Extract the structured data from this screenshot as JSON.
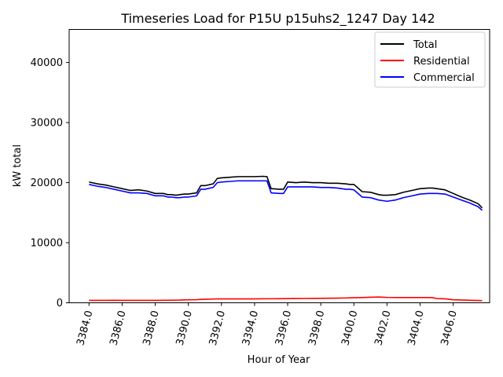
{
  "chart_data": {
    "type": "line",
    "title": "Timeseries Load for P15U p15uhs2_1247  Day 142",
    "xlabel": "Hour of Year",
    "ylabel": "kW total",
    "xlim": [
      3382.8,
      3408.2
    ],
    "ylim": [
      0,
      45500
    ],
    "x_ticks": [
      3384.0,
      3386.0,
      3388.0,
      3390.0,
      3392.0,
      3394.0,
      3396.0,
      3398.0,
      3400.0,
      3402.0,
      3404.0,
      3406.0
    ],
    "x_tick_labels": [
      "3384.0",
      "3386.0",
      "3388.0",
      "3390.0",
      "3392.0",
      "3394.0",
      "3396.0",
      "3398.0",
      "3400.0",
      "3402.0",
      "3404.0",
      "3406.0"
    ],
    "y_ticks": [
      0,
      10000,
      20000,
      30000,
      40000
    ],
    "y_tick_labels": [
      "0",
      "10000",
      "20000",
      "30000",
      "40000"
    ],
    "legend_position": "top-right",
    "x": [
      3384.0,
      3384.5,
      3385.0,
      3385.5,
      3386.0,
      3386.5,
      3387.0,
      3387.5,
      3388.0,
      3388.25,
      3388.5,
      3388.75,
      3389.0,
      3389.25,
      3389.5,
      3389.75,
      3390.0,
      3390.5,
      3390.75,
      3391.0,
      3391.5,
      3391.75,
      3392.0,
      3392.5,
      3393.0,
      3393.5,
      3394.0,
      3394.5,
      3394.75,
      3395.0,
      3395.5,
      3395.75,
      3396.0,
      3396.5,
      3397.0,
      3397.5,
      3398.0,
      3398.5,
      3399.0,
      3399.5,
      3399.75,
      3400.0,
      3400.5,
      3401.0,
      3401.25,
      3401.5,
      3401.75,
      3402.0,
      3402.5,
      3403.0,
      3403.5,
      3404.0,
      3404.5,
      3404.75,
      3405.0,
      3405.5,
      3406.0,
      3406.5,
      3407.0,
      3407.5,
      3407.75
    ],
    "series": [
      {
        "name": "Total",
        "color": "#000000",
        "values": [
          20100,
          19800,
          19600,
          19300,
          19000,
          18700,
          18800,
          18600,
          18200,
          18200,
          18200,
          18000,
          18000,
          17900,
          18000,
          18100,
          18100,
          18300,
          19500,
          19500,
          19800,
          20700,
          20800,
          20900,
          21000,
          21000,
          21000,
          21050,
          21000,
          19000,
          18900,
          18900,
          20100,
          20000,
          20100,
          20000,
          20000,
          19900,
          19900,
          19800,
          19700,
          19700,
          18500,
          18400,
          18200,
          18000,
          17900,
          17900,
          18000,
          18400,
          18700,
          19000,
          19100,
          19100,
          19000,
          18800,
          18200,
          17600,
          17100,
          16500,
          15800
        ]
      },
      {
        "name": "Residential",
        "color": "#ff0000",
        "values": [
          400,
          400,
          400,
          420,
          400,
          400,
          400,
          400,
          400,
          400,
          410,
          410,
          420,
          440,
          450,
          480,
          500,
          520,
          560,
          580,
          620,
          650,
          650,
          650,
          650,
          650,
          650,
          660,
          670,
          670,
          680,
          690,
          700,
          710,
          720,
          730,
          740,
          760,
          780,
          800,
          820,
          840,
          880,
          920,
          940,
          950,
          930,
          900,
          880,
          880,
          880,
          880,
          870,
          860,
          700,
          660,
          500,
          460,
          420,
          380,
          360
        ]
      },
      {
        "name": "Commercial",
        "color": "#0000ff",
        "values": [
          19700,
          19400,
          19200,
          18900,
          18600,
          18300,
          18300,
          18200,
          17800,
          17800,
          17800,
          17600,
          17600,
          17500,
          17500,
          17600,
          17600,
          17800,
          18900,
          18900,
          19200,
          20000,
          20100,
          20200,
          20300,
          20300,
          20300,
          20300,
          20300,
          18300,
          18200,
          18200,
          19300,
          19300,
          19300,
          19300,
          19200,
          19200,
          19100,
          18900,
          18900,
          18800,
          17600,
          17500,
          17300,
          17100,
          17000,
          16900,
          17100,
          17500,
          17800,
          18100,
          18200,
          18200,
          18200,
          18100,
          17600,
          17100,
          16600,
          16000,
          15400
        ]
      }
    ]
  }
}
